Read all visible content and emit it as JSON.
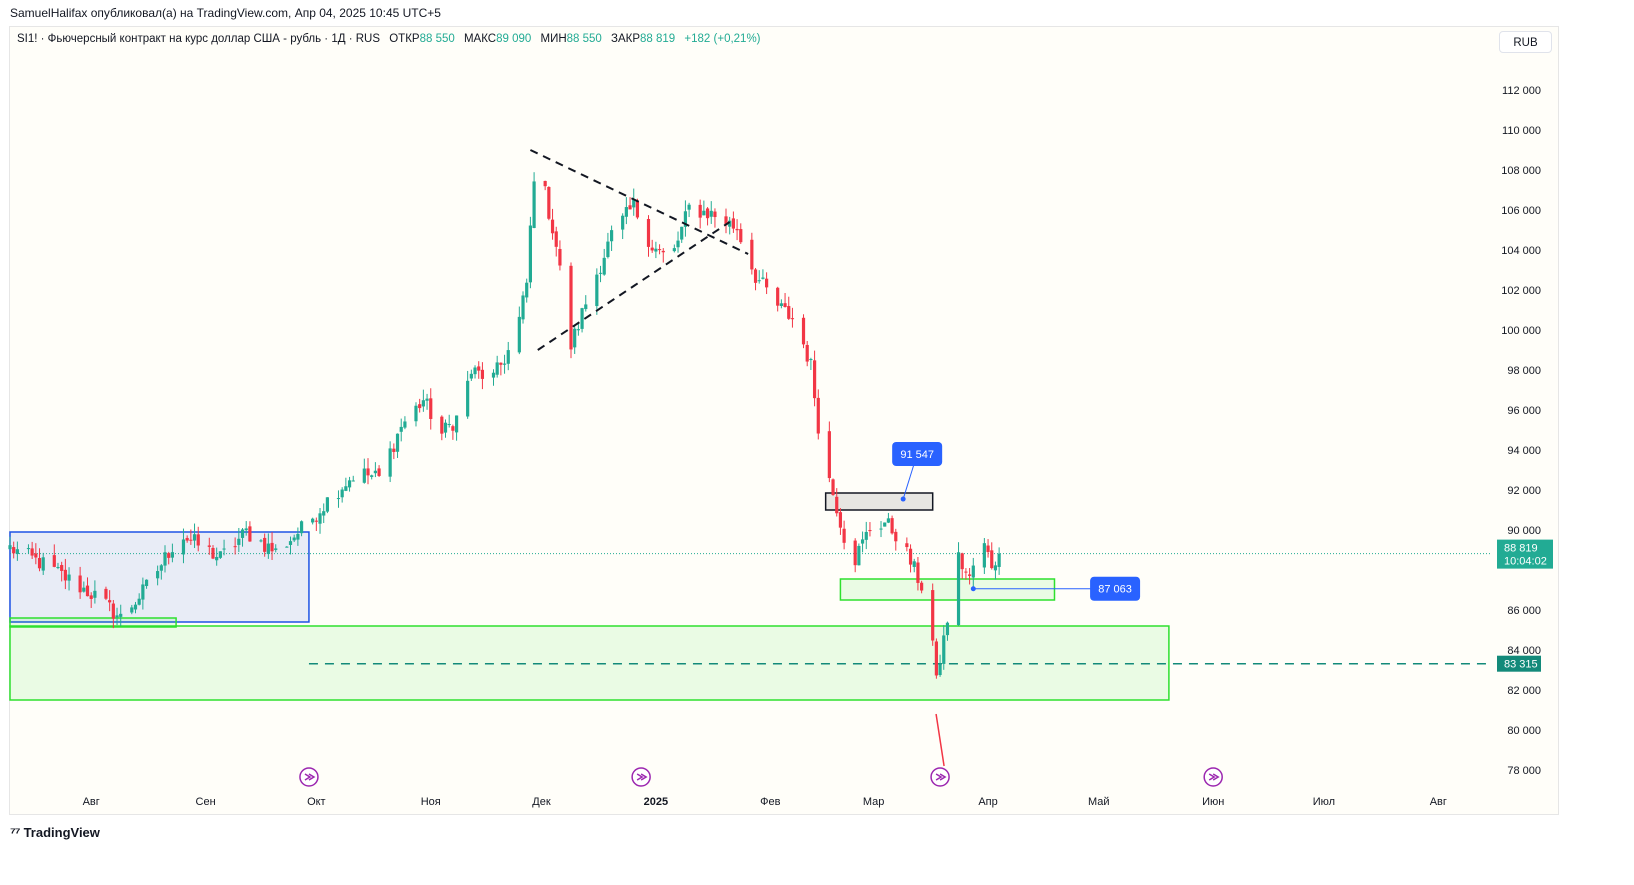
{
  "header": {
    "published": "SamuelHalifax опубликовал(а) на TradingView.com, Апр 04, 2025 10:45 UTC+5"
  },
  "legend": {
    "symbol": "SI1! · Фьючерсный контракт на курс доллар США - рубль · 1Д · RUS",
    "open_label": "ОТКР",
    "open": "88 550",
    "high_label": "МАКС",
    "high": "89 090",
    "low_label": "МИН",
    "low": "88 550",
    "close_label": "ЗАКР",
    "close": "88 819",
    "change": "+182 (+0,21%)"
  },
  "currency_button": "RUB",
  "footer": {
    "brand": "TradingView"
  },
  "colors": {
    "up": "#22ab94",
    "down": "#f23645",
    "zone_green": "#2ee02e",
    "zone_blue": "#1e53e5",
    "badge": "#2962ff"
  },
  "chart_data": {
    "type": "candlestick",
    "ylim": [
      77000,
      113500
    ],
    "y_ticks": [
      "112 000",
      "110 000",
      "108 000",
      "106 000",
      "104 000",
      "102 000",
      "100 000",
      "98 000",
      "96 000",
      "94 000",
      "92 000",
      "90 000",
      "86 000",
      "84 000",
      "82 000",
      "80 000",
      "78 000"
    ],
    "y_tick_values": [
      112000,
      110000,
      108000,
      106000,
      104000,
      102000,
      100000,
      98000,
      96000,
      94000,
      92000,
      90000,
      86000,
      84000,
      82000,
      80000,
      78000
    ],
    "x_labels": [
      "Авг",
      "Сен",
      "Окт",
      "Ноя",
      "Дек",
      "2025",
      "Фев",
      "Мар",
      "Апр",
      "Май",
      "Июн",
      "Июл",
      "Авг"
    ],
    "x_label_dates": [
      "2024-08-01",
      "2024-09-01",
      "2024-10-01",
      "2024-11-01",
      "2024-12-01",
      "2025-01-01",
      "2025-02-01",
      "2025-03-01",
      "2025-04-01",
      "2025-05-01",
      "2025-06-01",
      "2025-07-01",
      "2025-08-01"
    ],
    "x_range": [
      "2024-07-10",
      "2025-08-15"
    ],
    "last_price": {
      "value": 88819,
      "label": "88 819",
      "countdown": "10:04:02"
    },
    "level_label": {
      "value": 83315,
      "label": "83 315"
    },
    "callouts": [
      {
        "label": "91 547",
        "value": 91547,
        "date": "2025-03-09"
      },
      {
        "label": "87 063",
        "value": 87063,
        "date": "2025-03-28"
      }
    ],
    "trend_lines": [
      {
        "from": [
          "2024-11-28",
          109000
        ],
        "to": [
          "2025-01-26",
          103800
        ]
      },
      {
        "from": [
          "2024-11-30",
          99000
        ],
        "to": [
          "2025-01-21",
          105400
        ]
      }
    ],
    "zones": [
      {
        "color": "blue",
        "from": "2024-07-10",
        "to": "2024-09-29",
        "top": 89900,
        "bottom": 85400
      },
      {
        "color": "black",
        "from": "2025-02-16",
        "to": "2025-03-17",
        "top": 91850,
        "bottom": 91000
      },
      {
        "color": "green",
        "from": "2025-02-20",
        "to": "2025-04-19",
        "top": 87550,
        "bottom": 86500
      },
      {
        "color": "green",
        "from": "2024-07-10",
        "to": "2025-05-20",
        "top": 85200,
        "bottom": 81500
      },
      {
        "color": "green",
        "from": "2024-07-10",
        "to": "2024-08-24",
        "top": 85600,
        "bottom": 85150
      }
    ],
    "dashed_level": {
      "value": 83315,
      "from": "2024-09-29"
    },
    "event_markers": [
      "2024-09-29",
      "2024-12-28",
      "2025-03-19",
      "2025-06-01"
    ],
    "price_anchors": [
      [
        "2024-07-10",
        89100
      ],
      [
        "2024-07-20",
        88200
      ],
      [
        "2024-08-02",
        86700
      ],
      [
        "2024-08-09",
        85600
      ],
      [
        "2024-08-15",
        86900
      ],
      [
        "2024-08-20",
        88300
      ],
      [
        "2024-08-25",
        89800
      ],
      [
        "2024-09-05",
        88600
      ],
      [
        "2024-09-12",
        89900
      ],
      [
        "2024-09-20",
        88900
      ],
      [
        "2024-09-28",
        90200
      ],
      [
        "2024-10-05",
        91700
      ],
      [
        "2024-10-12",
        92900
      ],
      [
        "2024-10-18",
        92600
      ],
      [
        "2024-10-24",
        95200
      ],
      [
        "2024-10-30",
        96500
      ],
      [
        "2024-11-04",
        94800
      ],
      [
        "2024-11-08",
        95600
      ],
      [
        "2024-11-12",
        97900
      ],
      [
        "2024-11-18",
        97600
      ],
      [
        "2024-11-24",
        99600
      ],
      [
        "2024-11-27",
        102300
      ],
      [
        "2024-11-29",
        107800
      ],
      [
        "2024-12-02",
        106800
      ],
      [
        "2024-12-05",
        104200
      ],
      [
        "2024-12-09",
        99200
      ],
      [
        "2024-12-14",
        101900
      ],
      [
        "2024-12-20",
        104700
      ],
      [
        "2024-12-26",
        106200
      ],
      [
        "2024-12-31",
        104200
      ],
      [
        "2025-01-05",
        103400
      ],
      [
        "2025-01-10",
        106100
      ],
      [
        "2025-01-16",
        105800
      ],
      [
        "2025-01-23",
        105100
      ],
      [
        "2025-01-28",
        102700
      ],
      [
        "2025-02-03",
        101200
      ],
      [
        "2025-02-08",
        100400
      ],
      [
        "2025-02-12",
        98200
      ],
      [
        "2025-02-15",
        93800
      ],
      [
        "2025-02-19",
        91200
      ],
      [
        "2025-02-23",
        88200
      ],
      [
        "2025-02-28",
        90100
      ],
      [
        "2025-03-04",
        90400
      ],
      [
        "2025-03-08",
        89600
      ],
      [
        "2025-03-11",
        88400
      ],
      [
        "2025-03-14",
        87200
      ],
      [
        "2025-03-17",
        84400
      ],
      [
        "2025-03-18",
        82300
      ],
      [
        "2025-03-19",
        83500
      ],
      [
        "2025-03-24",
        88600
      ],
      [
        "2025-03-27",
        87500
      ],
      [
        "2025-03-30",
        89600
      ],
      [
        "2025-04-02",
        88300
      ],
      [
        "2025-04-04",
        88819
      ]
    ]
  }
}
